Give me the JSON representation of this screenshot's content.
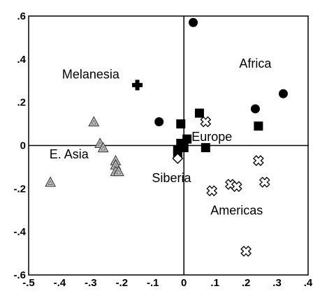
{
  "chart_data": {
    "type": "scatter",
    "title": "",
    "xlabel": "",
    "ylabel": "",
    "xlim": [
      -0.5,
      0.4
    ],
    "ylim": [
      -0.6,
      0.6
    ],
    "grid": false,
    "zero_lines": true,
    "x_ticks": [
      {
        "value": -0.5,
        "label": "-.5"
      },
      {
        "value": -0.4,
        "label": "-.4"
      },
      {
        "value": -0.3,
        "label": "-.3"
      },
      {
        "value": -0.2,
        "label": "-.2"
      },
      {
        "value": -0.1,
        "label": "-.1"
      },
      {
        "value": 0.0,
        "label": "0"
      },
      {
        "value": 0.1,
        "label": ".1"
      },
      {
        "value": 0.2,
        "label": ".2"
      },
      {
        "value": 0.3,
        "label": ".3"
      },
      {
        "value": 0.4,
        "label": ".4"
      }
    ],
    "y_ticks": [
      {
        "value": 0.6,
        "label": ".6"
      },
      {
        "value": 0.4,
        "label": ".4"
      },
      {
        "value": 0.2,
        "label": ".2"
      },
      {
        "value": 0.0,
        "label": "0"
      },
      {
        "value": -0.2,
        "label": "-.2"
      },
      {
        "value": -0.4,
        "label": "-.4"
      },
      {
        "value": -0.6,
        "label": "-.6"
      }
    ],
    "series": [
      {
        "name": "Africa",
        "marker": "filled-circle",
        "color": "#000000",
        "points": [
          [
            0.03,
            0.57
          ],
          [
            -0.08,
            0.11
          ],
          [
            0.23,
            0.17
          ],
          [
            0.32,
            0.24
          ]
        ]
      },
      {
        "name": "Melanesia",
        "marker": "filled-cross",
        "color": "#000000",
        "points": [
          [
            -0.15,
            0.28
          ]
        ]
      },
      {
        "name": "Europe",
        "marker": "filled-square",
        "color": "#000000",
        "points": [
          [
            -0.01,
            0.1
          ],
          [
            0.05,
            0.15
          ],
          [
            0.24,
            0.09
          ],
          [
            0.01,
            0.03
          ],
          [
            0.07,
            -0.01
          ],
          [
            -0.01,
            0.01
          ],
          [
            0.0,
            -0.01
          ],
          [
            -0.02,
            -0.04
          ],
          [
            -0.02,
            -0.02
          ]
        ]
      },
      {
        "name": "E. Asia",
        "marker": "triangle",
        "color": "#999999",
        "points": [
          [
            -0.29,
            0.11
          ],
          [
            -0.27,
            0.01
          ],
          [
            -0.26,
            -0.01
          ],
          [
            -0.22,
            -0.07
          ],
          [
            -0.22,
            -0.09
          ],
          [
            -0.22,
            -0.12
          ],
          [
            -0.21,
            -0.12
          ],
          [
            -0.43,
            -0.17
          ]
        ]
      },
      {
        "name": "Siberia",
        "marker": "open-diamond",
        "color": "#000000",
        "points": [
          [
            -0.02,
            -0.06
          ]
        ]
      },
      {
        "name": "Americas",
        "marker": "open-cross",
        "color": "#000000",
        "points": [
          [
            0.07,
            0.11
          ],
          [
            0.24,
            -0.07
          ],
          [
            0.26,
            -0.17
          ],
          [
            0.15,
            -0.18
          ],
          [
            0.17,
            -0.19
          ],
          [
            0.09,
            -0.21
          ],
          [
            0.2,
            -0.49
          ]
        ]
      }
    ],
    "annotations": [
      {
        "text": "Melanesia",
        "x": -0.3,
        "y": 0.33
      },
      {
        "text": "Africa",
        "x": 0.23,
        "y": 0.38
      },
      {
        "text": "Europe",
        "x": 0.09,
        "y": 0.04
      },
      {
        "text": "E. Asia",
        "x": -0.37,
        "y": -0.04
      },
      {
        "text": "Siberia",
        "x": -0.04,
        "y": -0.15
      },
      {
        "text": "Americas",
        "x": 0.17,
        "y": -0.3
      }
    ]
  }
}
